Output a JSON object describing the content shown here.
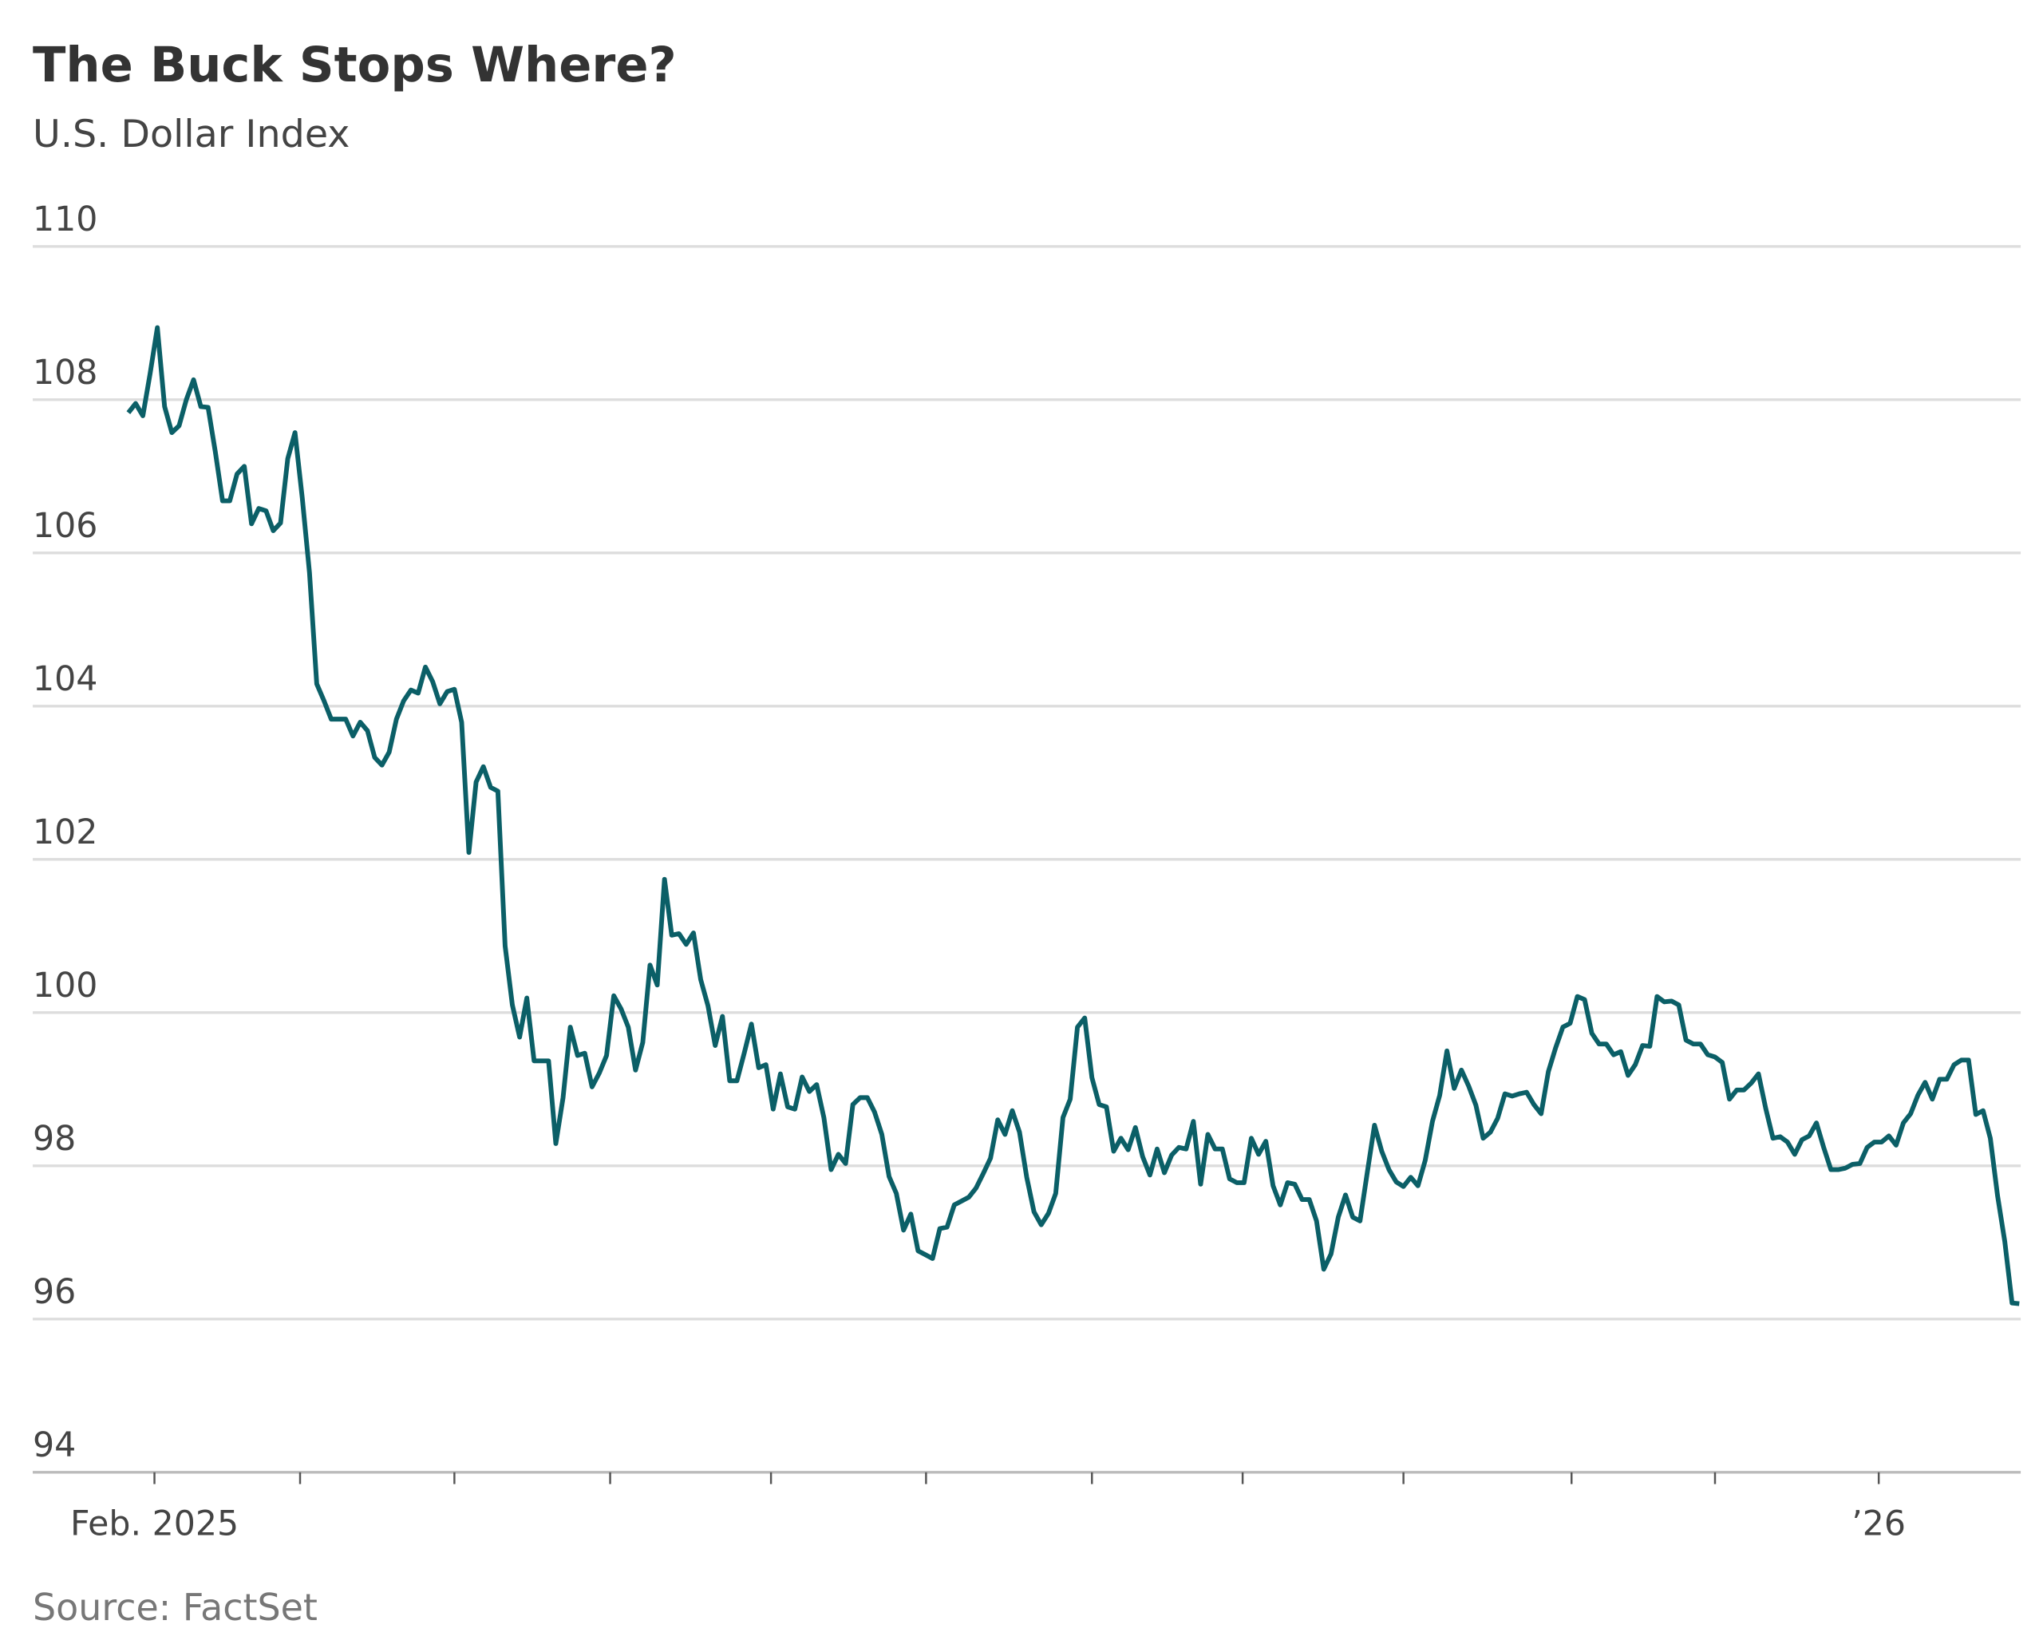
{
  "chart_data": {
    "type": "line",
    "title": "The Buck Stops Where?",
    "subtitle": "U.S. Dollar Index",
    "source": "Source: FactSet",
    "color": "#0b5f67",
    "grid": true,
    "ylim": [
      94,
      110
    ],
    "yticks": [
      94,
      96,
      98,
      100,
      102,
      104,
      106,
      108,
      110
    ],
    "xlim": [
      -13.2,
      261.2
    ],
    "xticks": [
      {
        "value": 3.6,
        "label": "Feb. 2025"
      },
      {
        "value": 241.6,
        "label": "’26"
      }
    ],
    "minor_xticks": [
      23.7,
      45.0,
      66.5,
      88.7,
      110.1,
      133.0,
      153.8,
      176.0,
      199.2,
      219.0
    ],
    "values": [
      107.83,
      107.95,
      107.79,
      108.34,
      108.94,
      107.91,
      107.57,
      107.66,
      108.0,
      108.26,
      107.91,
      107.9,
      107.32,
      106.68,
      106.68,
      107.03,
      107.13,
      106.38,
      106.58,
      106.55,
      106.29,
      106.39,
      107.23,
      107.57,
      106.72,
      105.74,
      104.29,
      104.07,
      103.83,
      103.83,
      103.83,
      103.61,
      103.79,
      103.68,
      103.33,
      103.23,
      103.4,
      103.83,
      104.07,
      104.21,
      104.17,
      104.51,
      104.32,
      104.03,
      104.19,
      104.22,
      103.79,
      102.09,
      103.01,
      103.21,
      102.94,
      102.89,
      100.87,
      100.1,
      99.68,
      100.19,
      99.37,
      99.37,
      99.37,
      98.29,
      98.89,
      99.81,
      99.44,
      99.47,
      99.03,
      99.21,
      99.44,
      100.22,
      100.05,
      99.81,
      99.25,
      99.61,
      100.62,
      100.36,
      101.74,
      101.01,
      101.03,
      100.89,
      101.04,
      100.43,
      100.09,
      99.57,
      99.95,
      99.11,
      99.11,
      99.47,
      99.85,
      99.28,
      99.32,
      98.74,
      99.2,
      98.77,
      98.74,
      99.16,
      98.97,
      99.06,
      98.63,
      97.95,
      98.15,
      98.03,
      98.8,
      98.89,
      98.89,
      98.7,
      98.41,
      97.86,
      97.64,
      97.16,
      97.37,
      96.89,
      96.84,
      96.79,
      97.18,
      97.2,
      97.49,
      97.54,
      97.59,
      97.71,
      97.9,
      98.1,
      98.6,
      98.41,
      98.72,
      98.44,
      97.85,
      97.4,
      97.23,
      97.38,
      97.64,
      98.63,
      98.87,
      99.81,
      99.93,
      99.15,
      98.8,
      98.77,
      98.19,
      98.36,
      98.21,
      98.5,
      98.12,
      97.88,
      98.22,
      97.91,
      98.14,
      98.24,
      98.22,
      98.58,
      97.76,
      98.41,
      98.22,
      98.22,
      97.83,
      97.78,
      97.78,
      98.36,
      98.15,
      98.32,
      97.74,
      97.49,
      97.78,
      97.76,
      97.56,
      97.56,
      97.28,
      96.65,
      96.85,
      97.33,
      97.62,
      97.33,
      97.28,
      97.91,
      98.53,
      98.19,
      97.95,
      97.79,
      97.73,
      97.85,
      97.74,
      98.07,
      98.58,
      98.92,
      99.5,
      99.01,
      99.25,
      99.04,
      98.79,
      98.36,
      98.44,
      98.62,
      98.94,
      98.91,
      98.94,
      98.96,
      98.8,
      98.68,
      99.23,
      99.54,
      99.81,
      99.86,
      100.21,
      100.17,
      99.73,
      99.59,
      99.59,
      99.45,
      99.49,
      99.18,
      99.32,
      99.57,
      99.56,
      100.21,
      100.14,
      100.15,
      100.1,
      99.64,
      99.59,
      99.59,
      99.45,
      99.42,
      99.35,
      98.87,
      98.99,
      98.99,
      99.08,
      99.2,
      98.75,
      98.36,
      98.38,
      98.31,
      98.15,
      98.34,
      98.39,
      98.56,
      98.24,
      97.95,
      97.95,
      97.97,
      98.02,
      98.03,
      98.24,
      98.31,
      98.31,
      98.39,
      98.27,
      98.56,
      98.68,
      98.92,
      99.09,
      98.87,
      99.13,
      99.13,
      99.32,
      99.38,
      99.38,
      98.67,
      98.72,
      98.36,
      97.61,
      97.01,
      96.21,
      96.2
    ]
  }
}
